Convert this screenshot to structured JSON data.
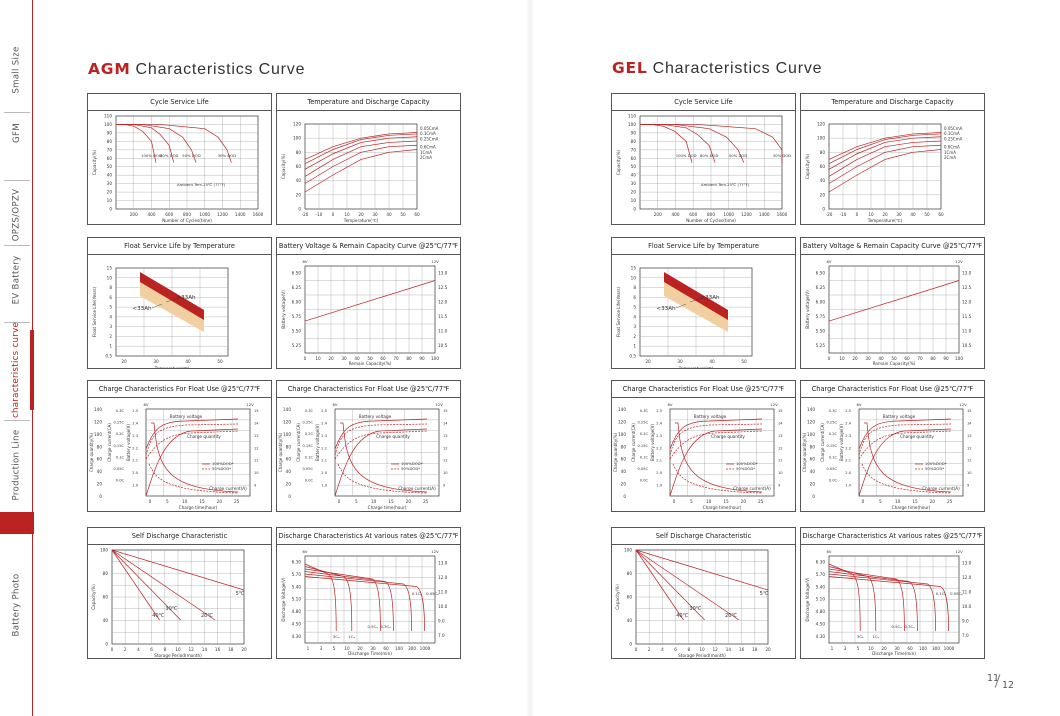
{
  "sidebar": {
    "items": [
      {
        "label": "Small Size",
        "active": false
      },
      {
        "label": "GFM",
        "active": false
      },
      {
        "label": "OPZS/OPZV",
        "active": false
      },
      {
        "label": "EV Battery",
        "active": false
      },
      {
        "label": "characteristics curve",
        "active": true
      },
      {
        "label": "Production Line",
        "active": false
      },
      {
        "label": "Battery Photo",
        "active": false
      }
    ]
  },
  "sections": [
    {
      "highlight": "AGM",
      "rest": "Characteristics Curve"
    },
    {
      "highlight": "GEL",
      "rest": "Characteristics  Curve"
    }
  ],
  "panel_titles": [
    "Cycle Service Life",
    "Temperature  and  Discharge  Capacity",
    "Float Service Life by Temperature",
    "Battery Voltage & Remain Capacity Curve @25℃/77℉",
    "Charge Characteristics For Float Use @25℃/77℉",
    "Charge Characteristics For Float Use @25℃/77℉",
    "Self Discharge Characteristic",
    "Discharge  Characteristics  At  various  rates @25℃/77℉"
  ],
  "labels": {
    "cycle": {
      "ylabel": "Capacity(%)",
      "xlabel": "Number of Cycles(time)",
      "ambient": "Ambient Tem.25℃ (77°F)"
    },
    "temp": {
      "ylabel": "Capacity(%)",
      "xlabel": "Temperature(℃)",
      "series": [
        "0.05CmA",
        "0.1CmA",
        "0.25CmA",
        "0.6CmA",
        "1CmA",
        "2CmA"
      ]
    },
    "float": {
      "ylabel": "Float Service Life(Years)",
      "xlabel": "Temperature(℃)",
      "a": "<33Ah",
      "b": ">33Ah"
    },
    "volt": {
      "ylabel": "Battery voltage(V)",
      "xlabel": "Remain Capacity(%)",
      "left_unit": "6V",
      "right_unit": "12V"
    },
    "charge": {
      "ylabel1": "Charge quantity(%)",
      "ylabel2": "Charge current(CA)",
      "ylabel3": "Battery voltage(V)",
      "xlabel": "Charge time(hour)",
      "bv": "Battery voltage",
      "cq": "Charge quantity",
      "cc": "Charge current(A)",
      "l100": "100%DOD*",
      "l50": "50%DOD*",
      "left_unit": "6V",
      "right_unit": "12V"
    },
    "self": {
      "ylabel": "Capacity(%)",
      "xlabel": "Storage Period(month)",
      "t5": "5℃",
      "t30": "30℃",
      "t40": "40℃",
      "t20": "20℃"
    },
    "disch": {
      "ylabel": "Discharge Voltage(V)",
      "xlabel": "Discharge Time(min)",
      "left_unit": "6V",
      "right_unit": "12V",
      "r3": "3Cₐ",
      "r1": "1Cₐ",
      "r05": "0.5Cₐ",
      "r03": "0.3Cₐ",
      "r01": "0.1Cₐ",
      "r005": "0.05Cₐ"
    }
  },
  "chart_data": [
    {
      "type": "line",
      "title": "Cycle Service Life",
      "xlabel": "Number of Cycles(time)",
      "ylabel": "Capacity(%)",
      "x_ticks": [
        200,
        400,
        600,
        800,
        1000,
        1200,
        1400,
        1600
      ],
      "y_ticks": [
        0,
        10,
        20,
        30,
        40,
        50,
        60,
        70,
        80,
        90,
        100,
        110
      ],
      "series": [
        {
          "name": "100% DOD",
          "x": [
            0,
            100,
            200,
            300,
            400,
            450
          ],
          "y": [
            100,
            100,
            98,
            92,
            80,
            55
          ]
        },
        {
          "name": "80% DOD",
          "x": [
            0,
            200,
            400,
            500,
            600,
            650
          ],
          "y": [
            100,
            100,
            96,
            88,
            75,
            55
          ]
        },
        {
          "name": "50% DOD",
          "x": [
            0,
            300,
            600,
            750,
            850,
            900
          ],
          "y": [
            100,
            100,
            95,
            85,
            70,
            55
          ]
        },
        {
          "name": "30% DOD",
          "x": [
            0,
            500,
            1000,
            1150,
            1250,
            1300
          ],
          "y": [
            100,
            100,
            95,
            85,
            70,
            55
          ]
        }
      ]
    },
    {
      "type": "line",
      "title": "Temperature  and  Discharge  Capacity",
      "xlabel": "Temperature(℃)",
      "ylabel": "Capacity(%)",
      "x_ticks": [
        -20,
        -10,
        0,
        10,
        20,
        30,
        40,
        50,
        60
      ],
      "y_ticks": [
        0,
        20,
        40,
        60,
        80,
        100,
        120
      ],
      "series": [
        {
          "name": "0.05CmA",
          "x": [
            -20,
            0,
            20,
            40,
            60
          ],
          "y": [
            70,
            88,
            100,
            106,
            108
          ]
        },
        {
          "name": "0.1CmA",
          "x": [
            -20,
            0,
            20,
            40,
            60
          ],
          "y": [
            64,
            84,
            98,
            104,
            106
          ]
        },
        {
          "name": "0.25CmA",
          "x": [
            -20,
            0,
            20,
            40,
            60
          ],
          "y": [
            56,
            78,
            94,
            100,
            102
          ]
        },
        {
          "name": "0.6CmA",
          "x": [
            -20,
            0,
            20,
            40,
            60
          ],
          "y": [
            46,
            70,
            88,
            94,
            96
          ]
        },
        {
          "name": "1CmA",
          "x": [
            -20,
            0,
            20,
            40,
            60
          ],
          "y": [
            36,
            60,
            80,
            88,
            90
          ]
        },
        {
          "name": "2CmA",
          "x": [
            -20,
            0,
            20,
            40,
            60
          ],
          "y": [
            24,
            48,
            70,
            80,
            84
          ]
        }
      ]
    },
    {
      "type": "area",
      "title": "Float Service Life by Temperature",
      "xlabel": "Temperature(℃)",
      "ylabel": "Float Service Life(Years)",
      "x_ticks": [
        20,
        30,
        40,
        50
      ],
      "y_ticks": [
        0.5,
        1,
        2,
        3,
        4,
        5,
        6,
        8,
        10,
        15
      ],
      "series": [
        {
          "name": "<33Ah",
          "x": [
            20,
            50
          ],
          "y": [
            6,
            1.2
          ]
        },
        {
          "name": ">33Ah",
          "x": [
            20,
            50
          ],
          "y": [
            8,
            2
          ]
        }
      ]
    },
    {
      "type": "line",
      "title": "Battery Voltage & Remain Capacity Curve @25℃/77℉",
      "xlabel": "Remain Capacity(%)",
      "ylabel": "Battery voltage(V)",
      "x_ticks": [
        0,
        10,
        20,
        30,
        40,
        50,
        60,
        70,
        80,
        90,
        100
      ],
      "y_ticks_6v": [
        5.25,
        5.5,
        5.75,
        6.0,
        6.25,
        6.5
      ],
      "y_ticks_12v": [
        10.5,
        11.0,
        11.5,
        12.0,
        12.5,
        13.0
      ],
      "series": [
        {
          "name": "OCV",
          "x": [
            0,
            100
          ],
          "y": [
            11.6,
            13.0
          ]
        }
      ]
    },
    {
      "type": "line",
      "title": "Charge Characteristics For Float Use @25℃/77℉",
      "xlabel": "Charge time(hour)",
      "x_ticks": [
        0,
        5,
        10,
        15,
        20,
        25
      ],
      "ylabel": "Charge quantity(%)",
      "series": [
        {
          "name": "100%DOD*",
          "x": [
            0,
            2,
            5,
            10,
            15,
            25
          ],
          "y": [
            0,
            40,
            80,
            100,
            105,
            108
          ]
        },
        {
          "name": "50%DOD*",
          "x": [
            0,
            2,
            5,
            10,
            25
          ],
          "y": [
            50,
            75,
            95,
            104,
            108
          ]
        }
      ]
    },
    {
      "type": "line",
      "title": "Self Discharge Characteristic",
      "xlabel": "Storage Period(month)",
      "ylabel": "Capacity(%)",
      "x_ticks": [
        0,
        2,
        4,
        6,
        8,
        10,
        12,
        14,
        16,
        18,
        20
      ],
      "y_ticks": [
        40,
        60,
        80,
        100
      ],
      "series": [
        {
          "name": "5℃",
          "x": [
            0,
            20
          ],
          "y": [
            100,
            70
          ]
        },
        {
          "name": "20℃",
          "x": [
            0,
            16
          ],
          "y": [
            100,
            40
          ]
        },
        {
          "name": "30℃",
          "x": [
            0,
            10
          ],
          "y": [
            100,
            40
          ]
        },
        {
          "name": "40℃",
          "x": [
            0,
            7
          ],
          "y": [
            100,
            40
          ]
        }
      ]
    },
    {
      "type": "line",
      "title": "Discharge  Characteristics  At  various  rates @25℃/77℉",
      "xlabel": "Discharge Time(min)",
      "x_ticks": [
        1,
        3,
        5,
        10,
        20,
        30,
        60,
        100,
        300,
        1000
      ],
      "y_ticks_6v": [
        4.3,
        4.5,
        4.8,
        5.1,
        5.4,
        5.7,
        6.3
      ],
      "y_ticks_12v": [
        7.0,
        9.0,
        10.0,
        11.0,
        12.0,
        13.0
      ],
      "series": [
        {
          "name": "3Cₐ"
        },
        {
          "name": "1Cₐ"
        },
        {
          "name": "0.5Cₐ"
        },
        {
          "name": "0.3Cₐ"
        },
        {
          "name": "0.1Cₐ"
        },
        {
          "name": "0.05Cₐ"
        }
      ]
    }
  ]
}
